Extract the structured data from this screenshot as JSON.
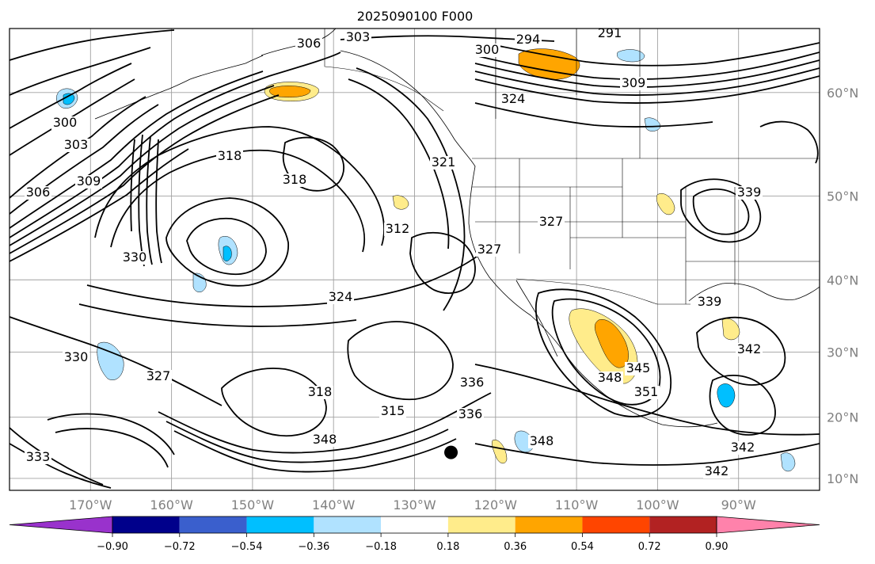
{
  "title": "2025090100 F000",
  "chart_data": {
    "type": "contour-map",
    "title": "2025090100 F000",
    "projection": "Mercator, North Pacific / North America",
    "lon_range": [
      -180,
      -80
    ],
    "lat_range": [
      8,
      65
    ],
    "grid": true,
    "lon_ticks": [
      "170°W",
      "160°W",
      "150°W",
      "140°W",
      "130°W",
      "120°W",
      "110°W",
      "100°W",
      "90°W"
    ],
    "lat_ticks": [
      "10°N",
      "20°N",
      "30°N",
      "40°N",
      "50°N",
      "60°N"
    ],
    "contour_labels": [
      "303",
      "306",
      "294",
      "291",
      "300",
      "324",
      "309",
      "300",
      "303",
      "306",
      "309",
      "318",
      "318",
      "312",
      "321",
      "327",
      "327",
      "336",
      "324",
      "330",
      "315",
      "318",
      "327",
      "336",
      "348",
      "348",
      "333",
      "342",
      "339",
      "342",
      "345",
      "351",
      "348",
      "342",
      "339",
      "330"
    ],
    "filled_field": {
      "levels": [
        -0.9,
        -0.72,
        -0.54,
        -0.36,
        -0.18,
        0.18,
        0.36,
        0.54,
        0.72,
        0.9
      ],
      "colors": [
        "#9932CC",
        "#00008B",
        "#3A5FCD",
        "#00BFFF",
        "#B0E2FF",
        "#FFFFFF",
        "#FFEC8B",
        "#FFA500",
        "#FF4500",
        "#B22222",
        "#FF82AB"
      ],
      "extend": "both"
    },
    "colorbar": {
      "orientation": "horizontal",
      "tick_labels": [
        "−0.90",
        "−0.72",
        "−0.54",
        "−0.36",
        "−0.18",
        "0.18",
        "0.36",
        "0.54",
        "0.72",
        "0.90"
      ]
    },
    "marker": {
      "type": "filled-circle",
      "color": "#000000",
      "lon": -125.5,
      "lat": 14.3
    }
  }
}
